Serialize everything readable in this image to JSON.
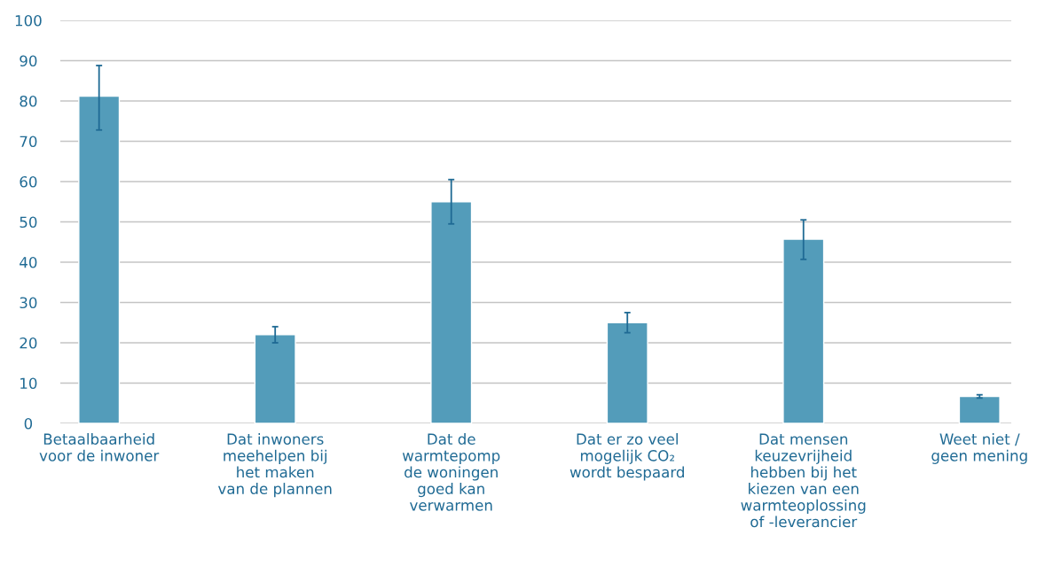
{
  "chart_data": {
    "type": "bar",
    "categories": [
      "Betaalbaarheid\nvoor de inwoner",
      "Dat inwoners\nmeehelpen bij\nhet maken\nvan de plannen",
      "Dat de\nwarmtepomp\nde woningen\ngoed kan\nverwarmen",
      "Dat er zo veel\nmogelijk CO₂\nwordt bespaard",
      "Dat mensen\nkeuzevrijheid\nhebben bij het\nkiezen van een\nwarmteoplossing\nof -leverancier",
      "Weet niet /\ngeen mening"
    ],
    "values": [
      81.2,
      22,
      55,
      25,
      45.7,
      6.7
    ],
    "errors": [
      [
        72.8,
        88.8
      ],
      [
        20,
        24
      ],
      [
        49.5,
        60.5
      ],
      [
        22.5,
        27.5
      ],
      [
        40.7,
        50.5
      ],
      [
        6.3,
        7.1
      ]
    ],
    "color": "#539cba",
    "ylim": [
      0,
      100
    ],
    "yticks": [
      0,
      10,
      20,
      30,
      40,
      50,
      60,
      70,
      80,
      90,
      100
    ],
    "grid": "y"
  }
}
